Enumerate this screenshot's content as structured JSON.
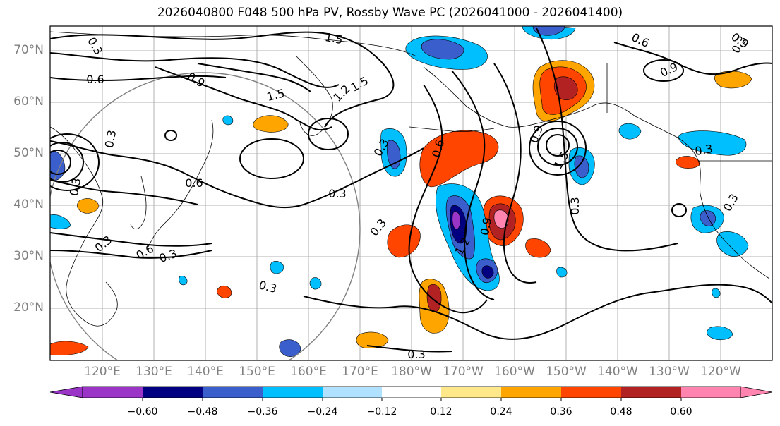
{
  "title": "2026040800 F048 500 hPa PV, Rossby Wave PC (2026041000 - 2026041400)",
  "lat_labels": [
    "70°N",
    "60°N",
    "50°N",
    "40°N",
    "30°N",
    "20°N"
  ],
  "lon_labels": [
    "120°E",
    "130°E",
    "140°E",
    "150°E",
    "160°E",
    "170°E",
    "180°W",
    "170°W",
    "160°W",
    "150°W",
    "140°W",
    "130°W",
    "120°W"
  ],
  "colorbar": {
    "ticks": [
      "−0.60",
      "−0.48",
      "−0.36",
      "−0.24",
      "−0.12",
      "0.12",
      "0.24",
      "0.36",
      "0.48",
      "0.60"
    ],
    "colors": [
      "#9a35c8",
      "#000080",
      "#3a5fcd",
      "#00bfff",
      "#b0e2ff",
      "#ffffff",
      "#ffe88a",
      "#ffa500",
      "#ff4500",
      "#b22222",
      "#ff85b0"
    ],
    "extend": "both"
  },
  "contour_labels": [
    "1.5",
    "0.6",
    "0.3",
    "0.6",
    "0.9",
    "1.5",
    "1.2",
    "1.5",
    "0.9",
    "0.9",
    "0.3",
    "0.6",
    "0.3",
    "0.3",
    "0.3",
    "0.6",
    "0.3",
    "0.3",
    "0.3",
    "0.3",
    "0.6",
    "0.9",
    "1.2",
    "0.9",
    "0.3",
    "0.3",
    "0.3",
    "0.3",
    "0.3",
    "1.5"
  ]
}
